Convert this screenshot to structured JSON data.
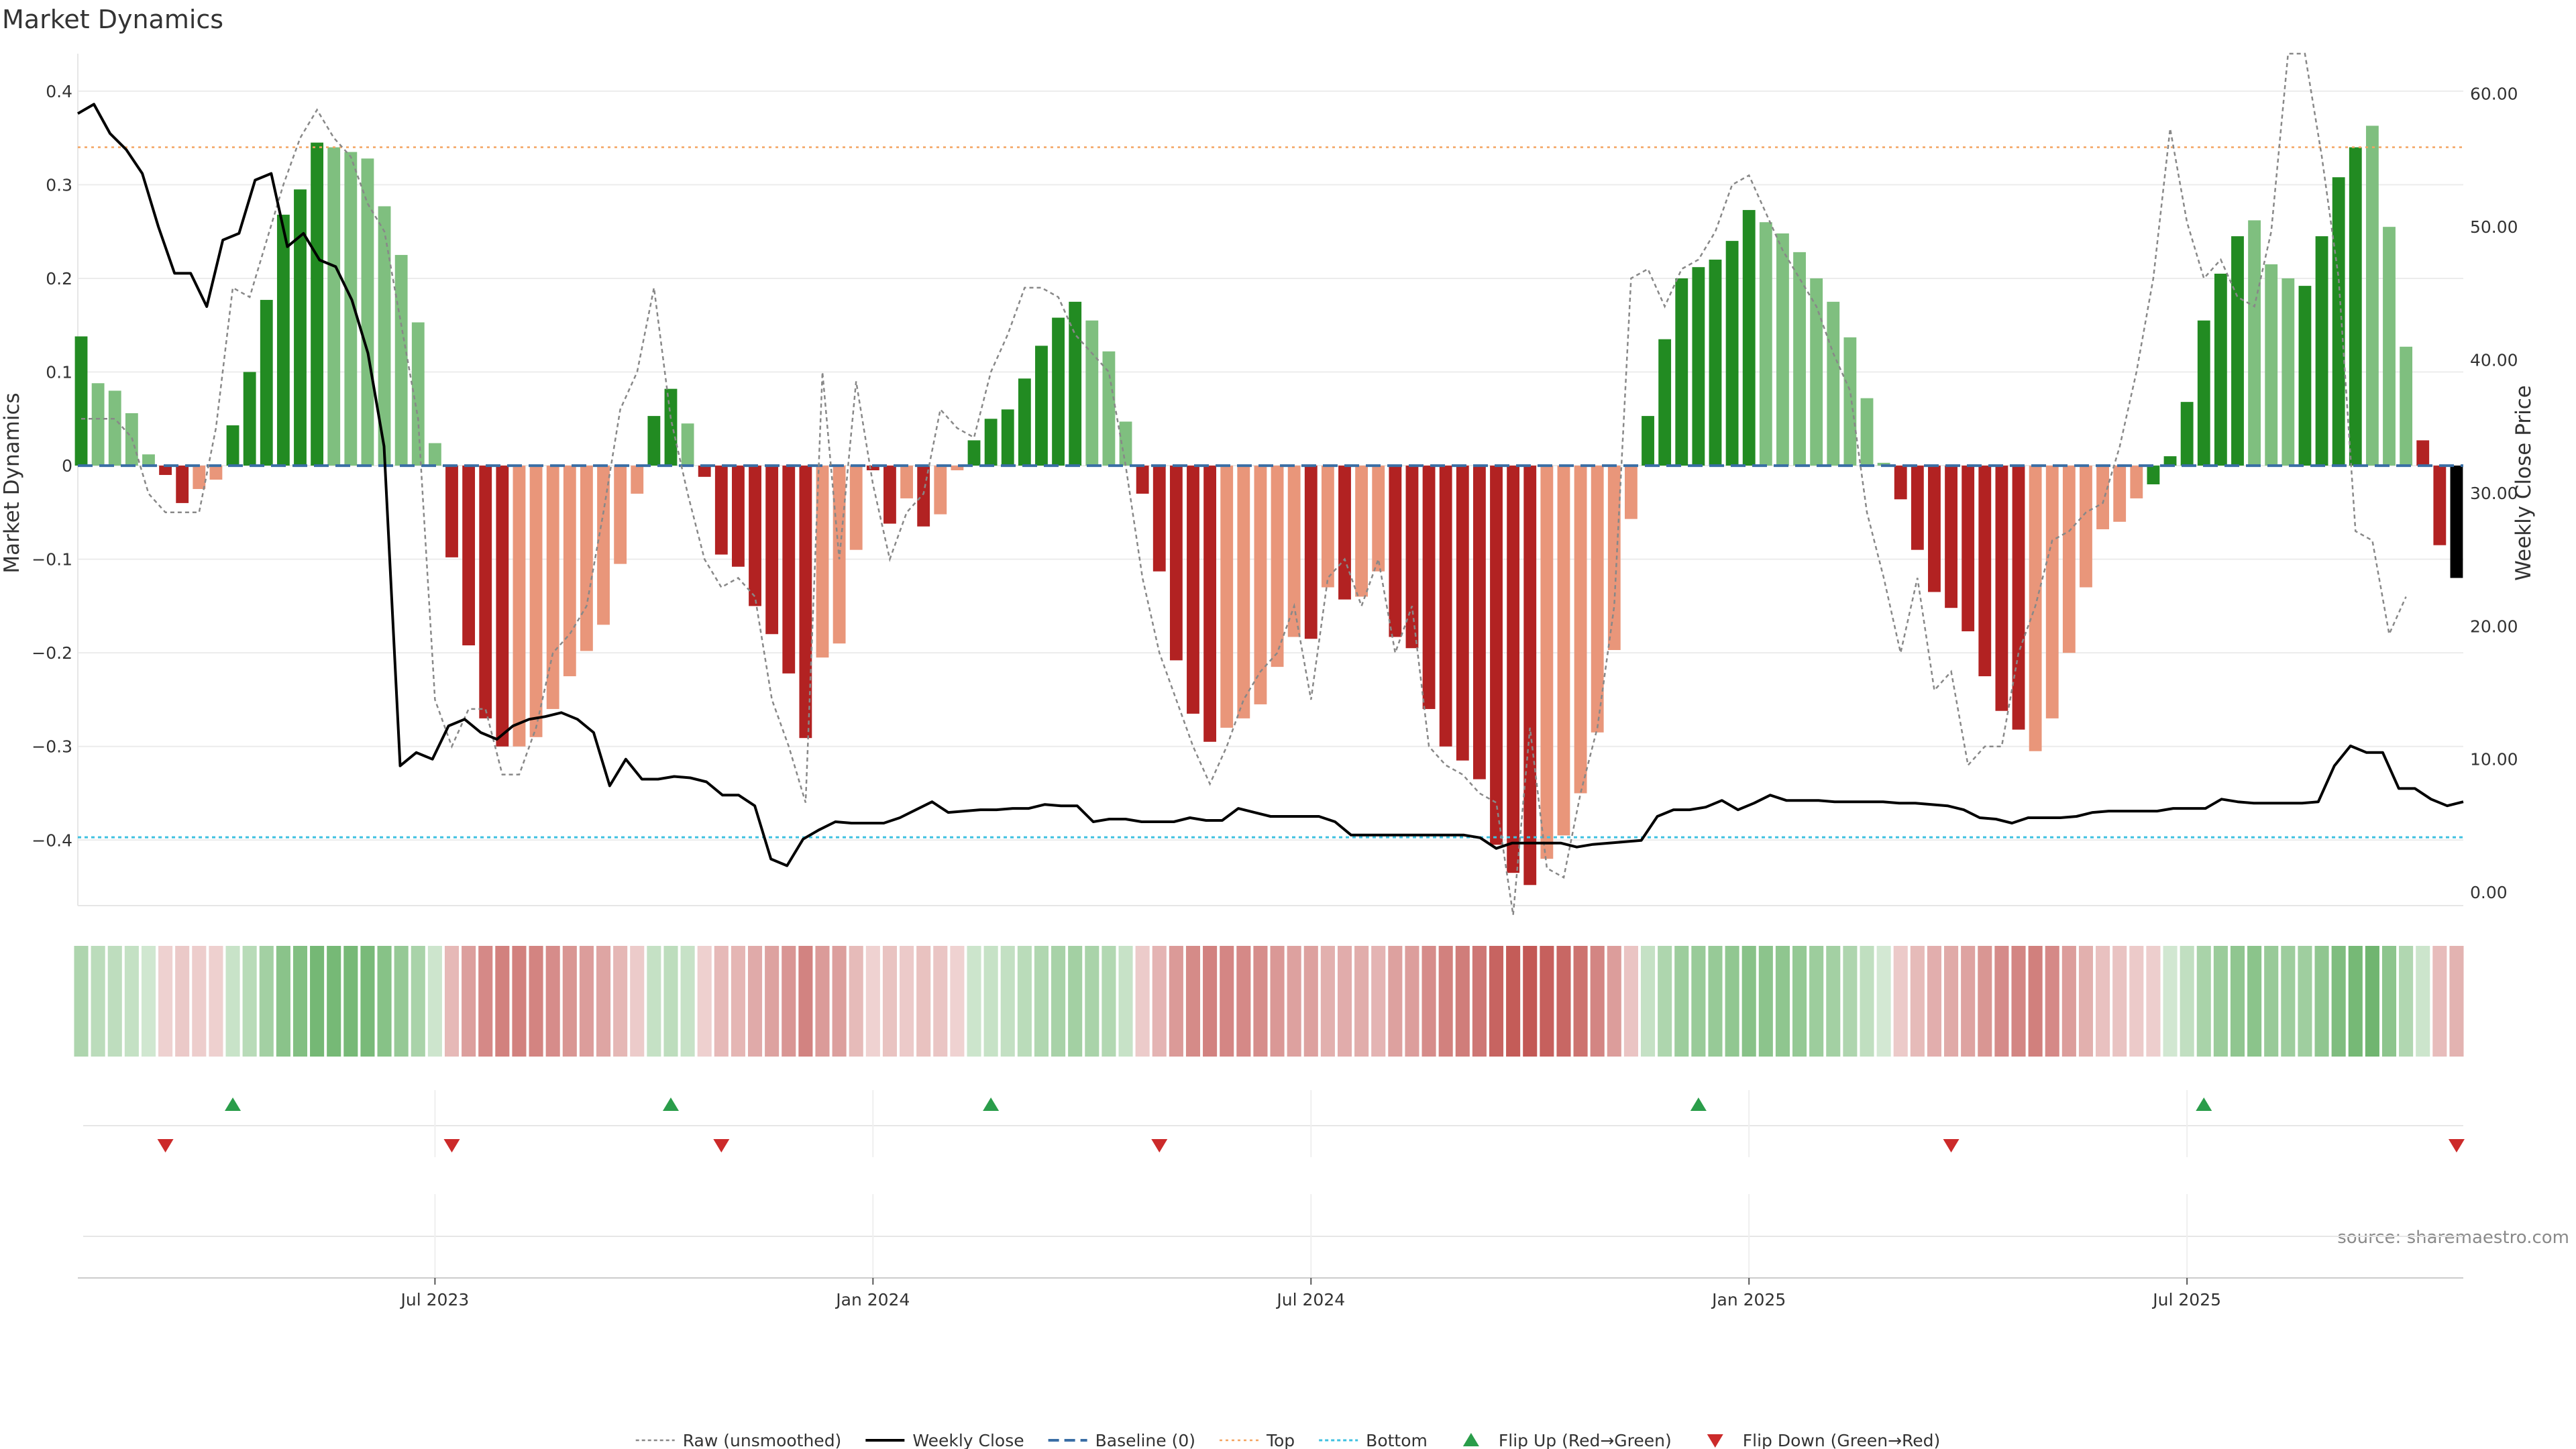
{
  "chart_data": {
    "type": "bar",
    "title": "Market Dynamics",
    "ylabel": "Market Dynamics",
    "y2label": "Weekly Close Price",
    "source": "source: sharemaestro.com",
    "ylim": [
      -0.47,
      0.44
    ],
    "y2lim": [
      -1,
      63
    ],
    "yticks": [
      {
        "v": 0.4,
        "t": "0.4"
      },
      {
        "v": 0.3,
        "t": "0.3"
      },
      {
        "v": 0.2,
        "t": "0.2"
      },
      {
        "v": 0.1,
        "t": "0.1"
      },
      {
        "v": 0,
        "t": "0"
      },
      {
        "v": -0.1,
        "t": "−0.1"
      },
      {
        "v": -0.2,
        "t": "−0.2"
      },
      {
        "v": -0.3,
        "t": "−0.3"
      },
      {
        "v": -0.4,
        "t": "−0.4"
      }
    ],
    "y2ticks": [
      {
        "v": 60,
        "t": "60.00"
      },
      {
        "v": 50,
        "t": "50.00"
      },
      {
        "v": 40,
        "t": "40.00"
      },
      {
        "v": 30,
        "t": "30.00"
      },
      {
        "v": 20,
        "t": "20.00"
      },
      {
        "v": 10,
        "t": "10.00"
      },
      {
        "v": 0,
        "t": "0.00"
      }
    ],
    "xticks": [
      {
        "i": 21,
        "t": "Jul 2023"
      },
      {
        "i": 47,
        "t": "Jan 2024"
      },
      {
        "i": 73,
        "t": "Jul 2024"
      },
      {
        "i": 99,
        "t": "Jan 2025"
      },
      {
        "i": 125,
        "t": "Jul 2025"
      }
    ],
    "top_level": 0.34,
    "bottom_level": -0.397,
    "bars": [
      0.138,
      0.088,
      0.08,
      0.056,
      0.012,
      -0.01,
      -0.04,
      -0.025,
      -0.015,
      0.043,
      0.1,
      0.177,
      0.268,
      0.295,
      0.345,
      0.34,
      0.335,
      0.328,
      0.277,
      0.225,
      0.153,
      0.024,
      -0.098,
      -0.192,
      -0.27,
      -0.3,
      -0.3,
      -0.29,
      -0.26,
      -0.225,
      -0.198,
      -0.17,
      -0.105,
      -0.03,
      0.053,
      0.082,
      0.045,
      -0.012,
      -0.095,
      -0.108,
      -0.15,
      -0.18,
      -0.222,
      -0.291,
      -0.205,
      -0.19,
      -0.09,
      -0.005,
      -0.062,
      -0.035,
      -0.065,
      -0.052,
      -0.005,
      0.027,
      0.05,
      0.06,
      0.093,
      0.128,
      0.158,
      0.175,
      0.155,
      0.122,
      0.047,
      -0.03,
      -0.113,
      -0.208,
      -0.265,
      -0.295,
      -0.28,
      -0.27,
      -0.255,
      -0.215,
      -0.183,
      -0.185,
      -0.13,
      -0.143,
      -0.14,
      -0.113,
      -0.183,
      -0.195,
      -0.26,
      -0.3,
      -0.315,
      -0.335,
      -0.405,
      -0.435,
      -0.448,
      -0.42,
      -0.395,
      -0.35,
      -0.285,
      -0.197,
      -0.057,
      0.053,
      0.135,
      0.2,
      0.212,
      0.22,
      0.24,
      0.273,
      0.26,
      0.248,
      0.228,
      0.2,
      0.175,
      0.137,
      0.072,
      0.003,
      -0.036,
      -0.09,
      -0.135,
      -0.152,
      -0.177,
      -0.225,
      -0.262,
      -0.282,
      -0.305,
      -0.27,
      -0.2,
      -0.13,
      -0.068,
      -0.06,
      -0.035,
      -0.02,
      0.01,
      0.068,
      0.155,
      0.205,
      0.245,
      0.262,
      0.215,
      0.2,
      0.192,
      0.245,
      0.308,
      0.34,
      0.363,
      0.255,
      0.127,
      0.027,
      -0.085,
      -0.12
    ],
    "bar_colors": [
      "#228b22",
      "#7fbf7f",
      "#7fbf7f",
      "#7fbf7f",
      "#7fbf7f",
      "#b22222",
      "#b22222",
      "#e9967a",
      "#e9967a",
      "#228b22",
      "#228b22",
      "#228b22",
      "#228b22",
      "#228b22",
      "#228b22",
      "#7fbf7f",
      "#7fbf7f",
      "#7fbf7f",
      "#7fbf7f",
      "#7fbf7f",
      "#7fbf7f",
      "#7fbf7f",
      "#b22222",
      "#b22222",
      "#b22222",
      "#b22222",
      "#e9967a",
      "#e9967a",
      "#e9967a",
      "#e9967a",
      "#e9967a",
      "#e9967a",
      "#e9967a",
      "#e9967a",
      "#228b22",
      "#228b22",
      "#7fbf7f",
      "#b22222",
      "#b22222",
      "#b22222",
      "#b22222",
      "#b22222",
      "#b22222",
      "#b22222",
      "#e9967a",
      "#e9967a",
      "#e9967a",
      "#b22222",
      "#b22222",
      "#e9967a",
      "#b22222",
      "#e9967a",
      "#e9967a",
      "#228b22",
      "#228b22",
      "#228b22",
      "#228b22",
      "#228b22",
      "#228b22",
      "#228b22",
      "#7fbf7f",
      "#7fbf7f",
      "#7fbf7f",
      "#b22222",
      "#b22222",
      "#b22222",
      "#b22222",
      "#b22222",
      "#e9967a",
      "#e9967a",
      "#e9967a",
      "#e9967a",
      "#e9967a",
      "#b22222",
      "#e9967a",
      "#b22222",
      "#e9967a",
      "#e9967a",
      "#b22222",
      "#b22222",
      "#b22222",
      "#b22222",
      "#b22222",
      "#b22222",
      "#b22222",
      "#b22222",
      "#b22222",
      "#e9967a",
      "#e9967a",
      "#e9967a",
      "#e9967a",
      "#e9967a",
      "#e9967a",
      "#228b22",
      "#228b22",
      "#228b22",
      "#228b22",
      "#228b22",
      "#228b22",
      "#228b22",
      "#7fbf7f",
      "#7fbf7f",
      "#7fbf7f",
      "#7fbf7f",
      "#7fbf7f",
      "#7fbf7f",
      "#7fbf7f",
      "#7fbf7f",
      "#b22222",
      "#b22222",
      "#b22222",
      "#b22222",
      "#b22222",
      "#b22222",
      "#b22222",
      "#b22222",
      "#e9967a",
      "#e9967a",
      "#e9967a",
      "#e9967a",
      "#e9967a",
      "#e9967a",
      "#e9967a",
      "#228b22",
      "#228b22",
      "#228b22",
      "#228b22",
      "#228b22",
      "#228b22",
      "#7fbf7f",
      "#7fbf7f",
      "#7fbf7f",
      "#228b22",
      "#228b22",
      "#228b22",
      "#228b22",
      "#7fbf7f",
      "#7fbf7f",
      "#7fbf7f",
      "#b22222",
      "#b22222"
    ],
    "raw_values": [
      0.05,
      0.05,
      0.05,
      0.03,
      -0.03,
      -0.05,
      -0.05,
      -0.05,
      0.04,
      0.19,
      0.18,
      0.24,
      0.3,
      0.35,
      0.38,
      0.35,
      0.33,
      0.28,
      0.25,
      0.15,
      0.05,
      -0.25,
      -0.3,
      -0.26,
      -0.26,
      -0.33,
      -0.33,
      -0.28,
      -0.2,
      -0.18,
      -0.15,
      -0.05,
      0.06,
      0.1,
      0.19,
      0.05,
      -0.03,
      -0.1,
      -0.13,
      -0.12,
      -0.14,
      -0.25,
      -0.3,
      -0.36,
      0.1,
      -0.1,
      0.09,
      -0.02,
      -0.1,
      -0.05,
      -0.03,
      0.06,
      0.04,
      0.03,
      0.1,
      0.14,
      0.19,
      0.19,
      0.18,
      0.14,
      0.12,
      0.1,
      0.0,
      -0.12,
      -0.2,
      -0.25,
      -0.3,
      -0.34,
      -0.3,
      -0.25,
      -0.22,
      -0.2,
      -0.15,
      -0.25,
      -0.12,
      -0.1,
      -0.15,
      -0.1,
      -0.2,
      -0.15,
      -0.3,
      -0.32,
      -0.33,
      -0.35,
      -0.36,
      -0.48,
      -0.28,
      -0.43,
      -0.44,
      -0.35,
      -0.28,
      -0.15,
      0.2,
      0.21,
      0.17,
      0.21,
      0.22,
      0.25,
      0.3,
      0.31,
      0.27,
      0.23,
      0.2,
      0.17,
      0.12,
      0.08,
      -0.05,
      -0.12,
      -0.2,
      -0.12,
      -0.24,
      -0.22,
      -0.32,
      -0.3,
      -0.3,
      -0.2,
      -0.15,
      -0.08,
      -0.07,
      -0.05,
      -0.04,
      0.02,
      0.1,
      0.2,
      0.36,
      0.26,
      0.2,
      0.22,
      0.18,
      0.17,
      0.25,
      0.44,
      0.44,
      0.33,
      0.2,
      -0.07,
      -0.08,
      -0.18,
      -0.14
    ],
    "raw_x": [
      0,
      1,
      2,
      3,
      4,
      5,
      6,
      7,
      8,
      9,
      10,
      11,
      12,
      13,
      14,
      15,
      16,
      17,
      18,
      19,
      20,
      21,
      22,
      23,
      24,
      25,
      26,
      27,
      28,
      29,
      30,
      31,
      32,
      33,
      34,
      35,
      36,
      37,
      38,
      39,
      40,
      41,
      42,
      43,
      44,
      45,
      46,
      47,
      48,
      49,
      50,
      51,
      52,
      53,
      54,
      55,
      56,
      57,
      58,
      59,
      60,
      61,
      62,
      63,
      64,
      65,
      66,
      67,
      68,
      69,
      70,
      71,
      72,
      73,
      74,
      75,
      76,
      77,
      78,
      79,
      80,
      81,
      82,
      83,
      84,
      85,
      86,
      87,
      88,
      89,
      90,
      91,
      92,
      93,
      94,
      95,
      96,
      97,
      98,
      99,
      100,
      101,
      102,
      103,
      104,
      105,
      106,
      107,
      108,
      109,
      110,
      111,
      112,
      113,
      114,
      115,
      116,
      117,
      118,
      119,
      120,
      121,
      122,
      123,
      124,
      125,
      126,
      127,
      128,
      129,
      130,
      131,
      132,
      133,
      134,
      135,
      136,
      137,
      138,
      139,
      140,
      141
    ],
    "close_values": [
      58.5,
      59.2,
      57,
      55.8,
      54,
      50,
      46.5,
      46.5,
      44,
      49,
      49.5,
      53.5,
      54,
      48.5,
      49.5,
      47.5,
      47,
      44.5,
      40.5,
      33.5,
      9.5,
      10.5,
      10,
      12.5,
      13,
      12,
      11.5,
      12.5,
      13,
      13.2,
      13.5,
      13,
      12,
      8,
      10,
      8.5,
      8.5,
      8.7,
      8.6,
      8.3,
      7.3,
      7.3,
      6.5,
      2.5,
      2,
      4,
      4.7,
      5.3,
      5.2,
      5.2,
      5.2,
      5.6,
      6.2,
      6.8,
      6,
      6.1,
      6.2,
      6.2,
      6.3,
      6.3,
      6.6,
      6.5,
      6.5,
      5.3,
      5.5,
      5.5,
      5.3,
      5.3,
      5.3,
      5.6,
      5.4,
      5.4,
      6.3,
      6,
      5.7,
      5.7,
      5.7,
      5.7,
      5.3,
      4.3,
      4.3,
      4.3,
      4.3,
      4.3,
      4.3,
      4.3,
      4.3,
      4.1,
      3.3,
      3.7,
      3.7,
      3.7,
      3.7,
      3.4,
      3.6,
      3.7,
      3.8,
      3.9,
      5.7,
      6.2,
      6.2,
      6.4,
      6.9,
      6.2,
      6.7,
      7.3,
      6.9,
      6.9,
      6.9,
      6.8,
      6.8,
      6.8,
      6.8,
      6.7,
      6.7,
      6.6,
      6.5,
      6.2,
      5.6,
      5.5,
      5.2,
      5.6,
      5.6,
      5.6,
      5.7,
      6,
      6.1,
      6.1,
      6.1,
      6.1,
      6.3,
      6.3,
      6.3,
      7,
      6.8,
      6.7,
      6.7,
      6.7,
      6.7,
      6.8,
      9.5,
      11,
      10.5,
      10.5,
      7.8,
      7.8,
      7,
      6.5,
      6.8
    ],
    "flip_up": [
      9,
      35,
      54,
      96,
      126
    ],
    "flip_down": [
      5,
      22,
      38,
      64,
      111,
      141
    ],
    "legend": [
      {
        "label": "Raw (unsmoothed)",
        "kind": "dotted-gray"
      },
      {
        "label": "Weekly Close",
        "kind": "solid-black"
      },
      {
        "label": "Baseline (0)",
        "kind": "dashed-blue"
      },
      {
        "label": "Top",
        "kind": "dotted-orange"
      },
      {
        "label": "Bottom",
        "kind": "dotted-cyan"
      },
      {
        "label": "Flip Up (Red→Green)",
        "kind": "triangle-up"
      },
      {
        "label": "Flip Down (Green→Red)",
        "kind": "triangle-down"
      }
    ],
    "colors": {
      "strong_green": "#228b22",
      "light_green": "#7fbf7f",
      "strong_red": "#b22222",
      "light_red": "#e9967a",
      "close": "#000000",
      "raw": "#888888",
      "baseline": "#3a6ea5",
      "top": "#f4a460",
      "bottom": "#3fc1e0",
      "flip_up": "#2a9d4a",
      "flip_down": "#cc2a2a"
    }
  }
}
